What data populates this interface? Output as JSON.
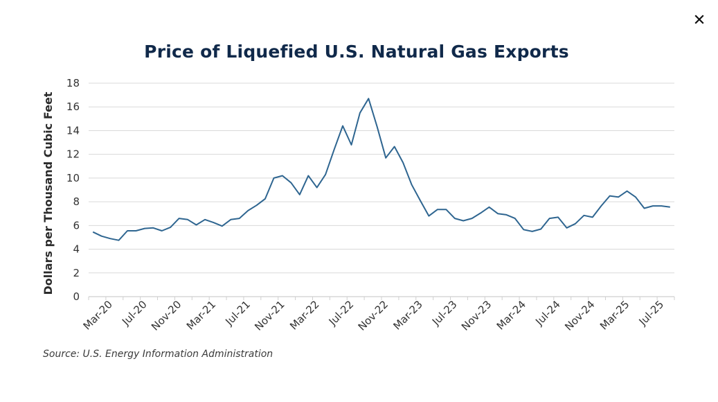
{
  "close_button": {
    "label": "×",
    "icon": "close-icon"
  },
  "chart_data": {
    "type": "line",
    "title": "Price of Liquefied U.S. Natural Gas Exports",
    "xlabel": "",
    "ylabel": "Dollars per Thousand Cubic Feet",
    "source": "Source: U.S. Energy Information Administration",
    "ylim": [
      0,
      18
    ],
    "yticks": [
      0,
      2,
      4,
      6,
      8,
      10,
      12,
      14,
      16,
      18
    ],
    "grid": true,
    "legend": "none",
    "line_color": "#2e6590",
    "x": [
      "Jan-20",
      "Feb-20",
      "Mar-20",
      "Apr-20",
      "May-20",
      "Jun-20",
      "Jul-20",
      "Aug-20",
      "Sep-20",
      "Oct-20",
      "Nov-20",
      "Dec-20",
      "Jan-21",
      "Feb-21",
      "Mar-21",
      "Apr-21",
      "May-21",
      "Jun-21",
      "Jul-21",
      "Aug-21",
      "Sep-21",
      "Oct-21",
      "Nov-21",
      "Dec-21",
      "Jan-22",
      "Feb-22",
      "Mar-22",
      "Apr-22",
      "May-22",
      "Jun-22",
      "Jul-22",
      "Aug-22",
      "Sep-22",
      "Oct-22",
      "Nov-22",
      "Dec-22",
      "Jan-23",
      "Feb-23",
      "Mar-23",
      "Apr-23",
      "May-23",
      "Jun-23",
      "Jul-23",
      "Aug-23",
      "Sep-23",
      "Oct-23",
      "Nov-23",
      "Dec-23",
      "Jan-24",
      "Feb-24",
      "Mar-24",
      "Apr-24",
      "May-24",
      "Jun-24",
      "Jul-24",
      "Aug-24",
      "Sep-24",
      "Oct-24",
      "Nov-24",
      "Dec-24",
      "Jan-25",
      "Feb-25",
      "Mar-25",
      "Apr-25",
      "May-25",
      "Jun-25",
      "Jul-25",
      "Aug-25"
    ],
    "xtick_labels": [
      "Mar-20",
      "Jul-20",
      "Nov-20",
      "Mar-21",
      "Jul-21",
      "Nov-21",
      "Mar-22",
      "Jul-22",
      "Nov-22",
      "Mar-23",
      "Jul-23",
      "Nov-23",
      "Mar-24",
      "Jul-24",
      "Nov-24",
      "Mar-25",
      "Jul-25"
    ],
    "series": [
      {
        "name": "Price",
        "values": [
          5.45,
          5.1,
          4.9,
          4.75,
          5.55,
          5.55,
          5.75,
          5.8,
          5.55,
          5.85,
          6.6,
          6.5,
          6.05,
          6.5,
          6.25,
          5.95,
          6.5,
          6.6,
          7.25,
          7.7,
          8.25,
          10.0,
          10.2,
          9.6,
          8.6,
          10.2,
          9.2,
          10.3,
          12.4,
          14.4,
          12.8,
          15.5,
          16.7,
          14.3,
          11.7,
          12.65,
          11.3,
          9.45,
          8.1,
          6.8,
          7.35,
          7.35,
          6.6,
          6.4,
          6.6,
          7.05,
          7.55,
          7.0,
          6.9,
          6.6,
          5.65,
          5.5,
          5.7,
          6.6,
          6.7,
          5.8,
          6.15,
          6.85,
          6.7,
          7.65,
          8.5,
          8.4,
          8.9,
          8.4,
          7.45,
          7.65,
          7.65,
          7.55
        ]
      }
    ]
  }
}
